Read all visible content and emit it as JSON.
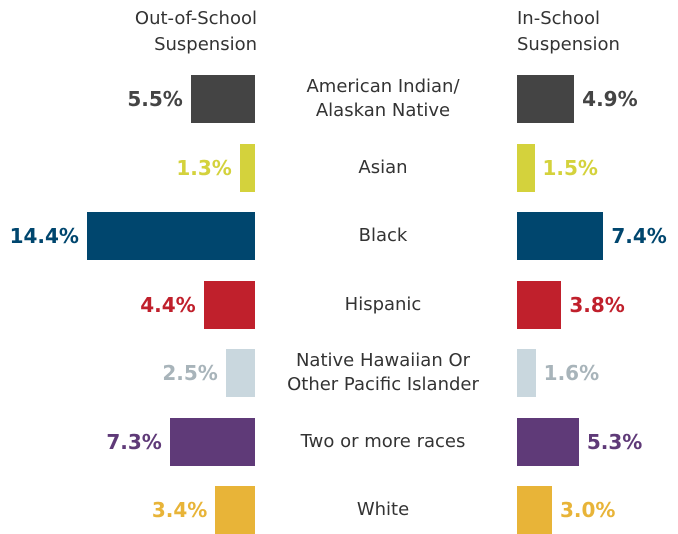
{
  "chart_data": {
    "type": "bar",
    "categories": [
      "American Indian/\nAlaskan Native",
      "Asian",
      "Black",
      "Hispanic",
      "Native Hawaiian Or\nOther Pacific Islander",
      "Two or more races",
      "White"
    ],
    "colors": [
      "#444444",
      "#d4d23c",
      "#00466e",
      "#c0202c",
      "#c9d7de",
      "#5f3a78",
      "#e8b438"
    ],
    "label_colors": [
      "#444444",
      "#d4d23c",
      "#00466e",
      "#c0202c",
      "#a8b4ba",
      "#5f3a78",
      "#e8b438"
    ],
    "series": [
      {
        "name": "Out-of-School\nSuspension",
        "values": [
          5.5,
          1.3,
          14.4,
          4.4,
          2.5,
          7.3,
          3.4
        ],
        "value_labels": [
          "5.5%",
          "1.3%",
          "14.4%",
          "4.4%",
          "2.5%",
          "7.3%",
          "3.4%"
        ]
      },
      {
        "name": "In-School\nSuspension",
        "values": [
          4.9,
          1.5,
          7.4,
          3.8,
          1.6,
          5.3,
          3.0
        ],
        "value_labels": [
          "4.9%",
          "1.5%",
          "7.4%",
          "3.8%",
          "1.6%",
          "5.3%",
          "3.0%"
        ]
      }
    ]
  }
}
